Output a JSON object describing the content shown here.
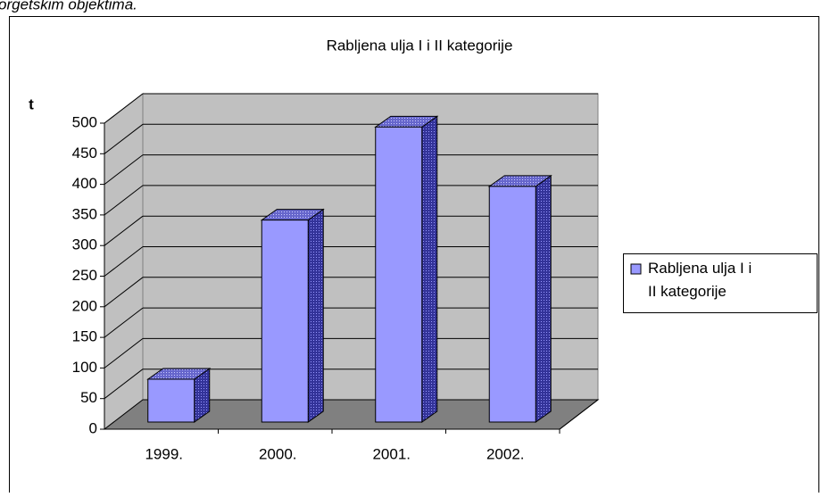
{
  "page_text": "orgetskim objektima.",
  "chart_data": {
    "type": "bar3d",
    "title": "Rabljena ulja I i II kategorije",
    "y_label": "t",
    "categories": [
      "1999.",
      "2000.",
      "2001.",
      "2002."
    ],
    "series": [
      {
        "name": "Rabljena ulja I i II kategorije",
        "color": "#9999ff",
        "values": [
          70,
          330,
          482,
          385
        ]
      }
    ],
    "ylim": [
      0,
      500
    ],
    "yticks": [
      0,
      50,
      100,
      150,
      200,
      250,
      300,
      350,
      400,
      450,
      500
    ],
    "grid": true,
    "legend": "right"
  }
}
